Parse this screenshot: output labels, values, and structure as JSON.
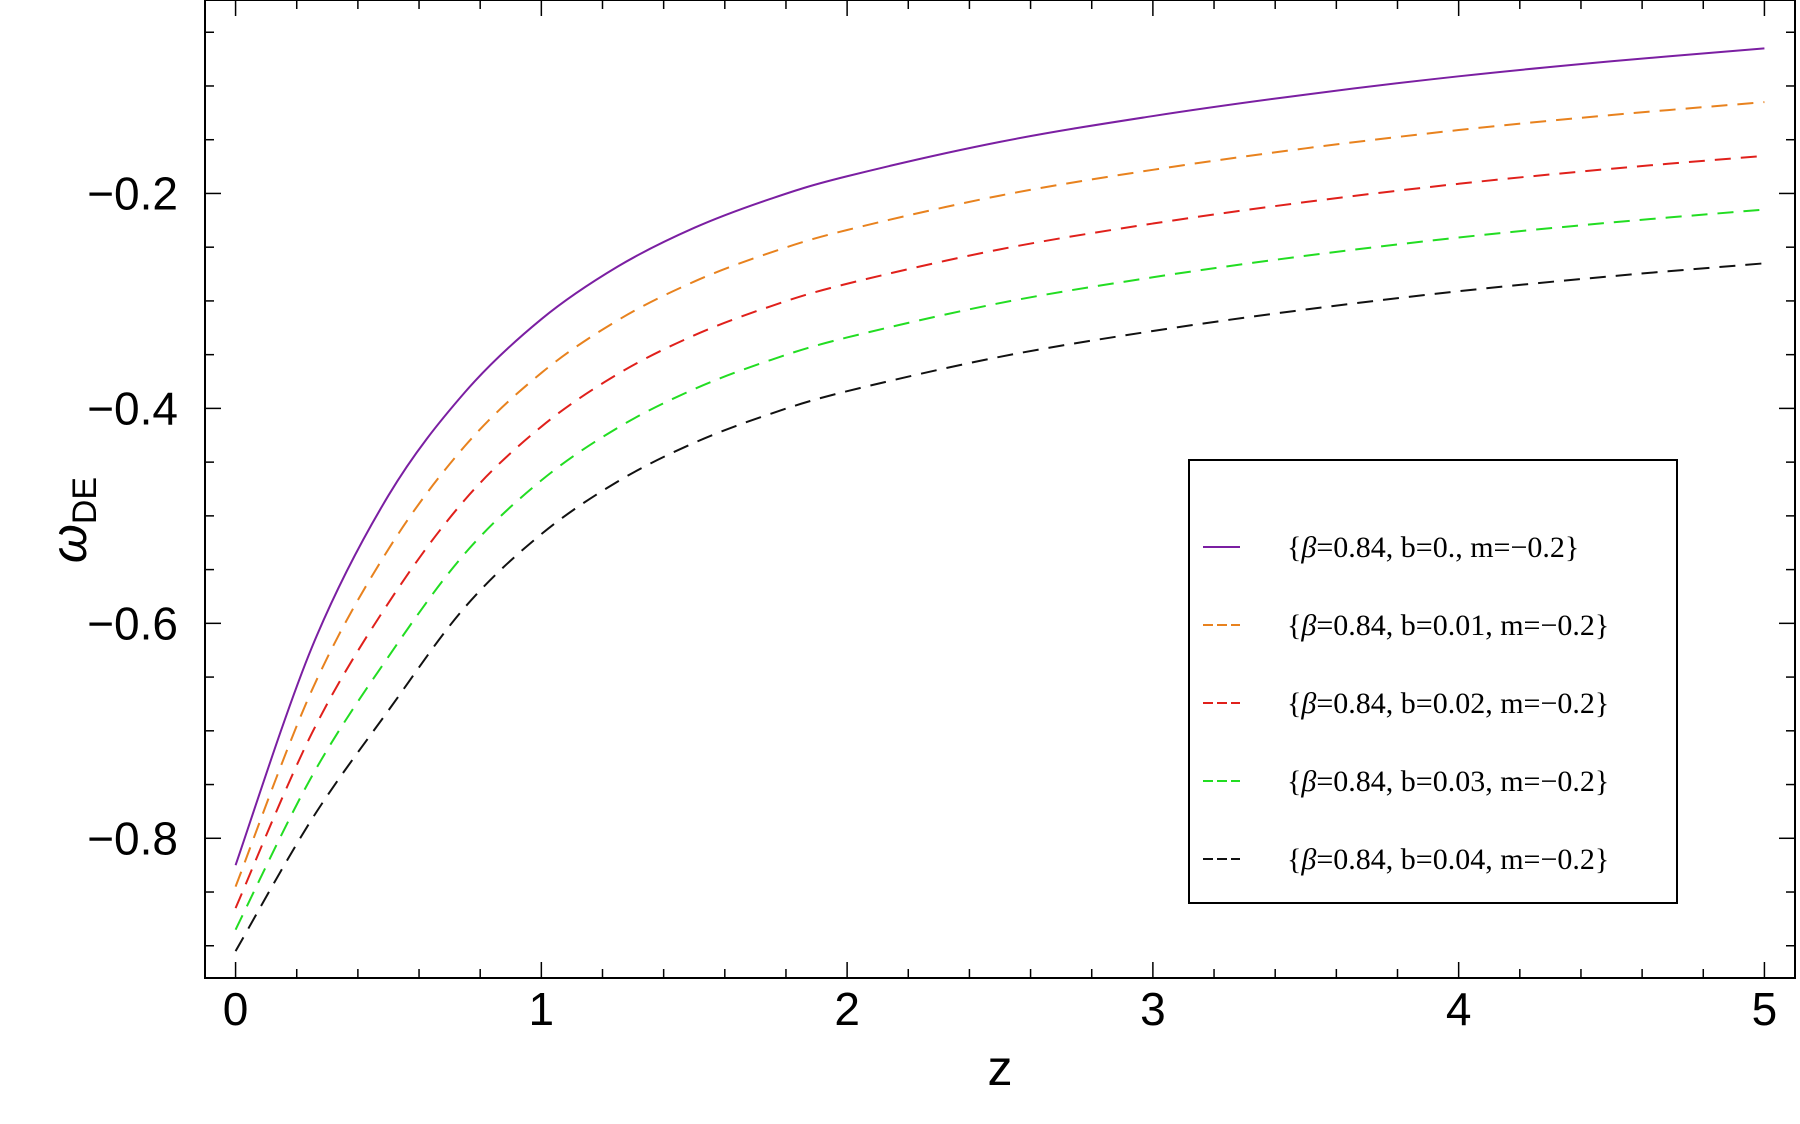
{
  "chart_data": {
    "type": "line",
    "xlabel": "z",
    "ylabel": "ω",
    "ylabel_sub": "DE",
    "xlim": [
      -0.1,
      5.1
    ],
    "ylim": [
      -0.93,
      -0.02
    ],
    "x_ticks": [
      0,
      1,
      2,
      3,
      4,
      5
    ],
    "x_tick_labels": [
      "0",
      "1",
      "2",
      "3",
      "4",
      "5"
    ],
    "y_ticks": [
      -0.2,
      -0.4,
      -0.6,
      -0.8
    ],
    "y_tick_labels": [
      "−0.2",
      "−0.4",
      "−0.6",
      "−0.8"
    ],
    "grid": false,
    "legend_position": "right",
    "x": [
      0,
      0.25,
      0.5,
      0.75,
      1,
      1.25,
      1.5,
      1.75,
      2,
      2.5,
      3,
      3.5,
      4,
      4.5,
      5
    ],
    "series": [
      {
        "name": "{β=0.84, b=0., m=−0.2}",
        "legend_prefix": "{",
        "legend_symbol": "β",
        "legend_rest": "=0.84, b=0., m=−0.2}",
        "color": "#7B1FA2",
        "dash": "solid",
        "values": [
          -0.825,
          -0.622,
          -0.481,
          -0.385,
          -0.317,
          -0.268,
          -0.232,
          -0.205,
          -0.184,
          -0.152,
          -0.128,
          -0.108,
          -0.091,
          -0.077,
          -0.065
        ]
      },
      {
        "name": "{β=0.84, b=0.01, m=−0.2}",
        "legend_prefix": "{",
        "legend_symbol": "β",
        "legend_rest": "=0.84, b=0.01, m=−0.2}",
        "color": "#E8821E",
        "dash": "dashed",
        "values": [
          -0.845,
          -0.662,
          -0.531,
          -0.435,
          -0.367,
          -0.318,
          -0.282,
          -0.255,
          -0.234,
          -0.202,
          -0.178,
          -0.158,
          -0.141,
          -0.127,
          -0.115
        ]
      },
      {
        "name": "{β=0.84, b=0.02, m=−0.2}",
        "legend_prefix": "{",
        "legend_symbol": "β",
        "legend_rest": "=0.84, b=0.02, m=−0.2}",
        "color": "#E0201B",
        "dash": "dashed",
        "values": [
          -0.865,
          -0.702,
          -0.581,
          -0.485,
          -0.417,
          -0.368,
          -0.332,
          -0.305,
          -0.284,
          -0.252,
          -0.228,
          -0.208,
          -0.191,
          -0.177,
          -0.165
        ]
      },
      {
        "name": "{β=0.84, b=0.03, m=−0.2}",
        "legend_prefix": "{",
        "legend_symbol": "β",
        "legend_rest": "=0.84, b=0.03, m=−0.2}",
        "color": "#22DD22",
        "dash": "dashed",
        "values": [
          -0.885,
          -0.742,
          -0.631,
          -0.535,
          -0.467,
          -0.418,
          -0.382,
          -0.355,
          -0.334,
          -0.302,
          -0.278,
          -0.258,
          -0.241,
          -0.227,
          -0.215
        ]
      },
      {
        "name": "{β=0.84, b=0.04, m=−0.2}",
        "legend_prefix": "{",
        "legend_symbol": "β",
        "legend_rest": "=0.84, b=0.04, m=−0.2}",
        "color": "#111111",
        "dash": "dashed",
        "values": [
          -0.905,
          -0.782,
          -0.681,
          -0.585,
          -0.517,
          -0.468,
          -0.432,
          -0.405,
          -0.384,
          -0.352,
          -0.328,
          -0.308,
          -0.291,
          -0.277,
          -0.265
        ]
      }
    ]
  }
}
